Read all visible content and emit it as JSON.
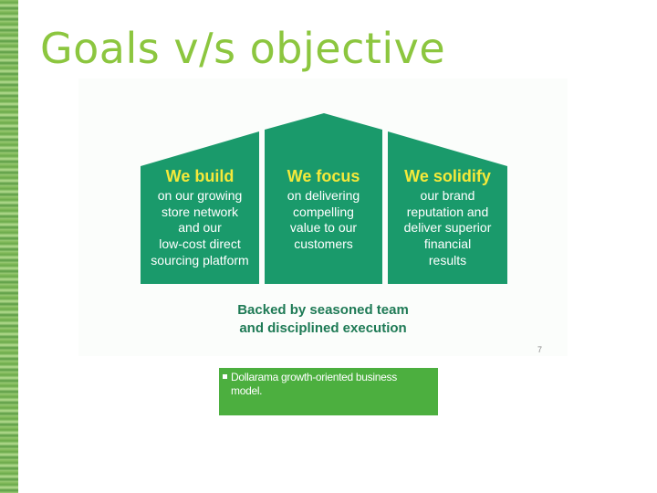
{
  "slide": {
    "title": "Goals v/s objective",
    "page_number": "7"
  },
  "figure": {
    "pillars": [
      {
        "heading": "We build",
        "lines": [
          "on our growing",
          "store network",
          "and our",
          "low-cost direct",
          "sourcing platform"
        ]
      },
      {
        "heading": "We focus",
        "lines": [
          "on delivering",
          "compelling",
          "value to our",
          "customers"
        ]
      },
      {
        "heading": "We solidify",
        "lines": [
          "our brand",
          "reputation and",
          "deliver superior",
          "financial",
          "results"
        ]
      }
    ],
    "footer_lines": [
      "Backed by seasoned team",
      "and disciplined execution"
    ],
    "colors": {
      "pillar": "#1a9a6b",
      "heading": "#f5e93a",
      "footer": "#1e7a55"
    }
  },
  "caption": {
    "line1": "Dollarama growth-oriented business",
    "line2": "model."
  },
  "colors": {
    "title": "#8cc63f",
    "caption_bg": "#4caf3f"
  }
}
